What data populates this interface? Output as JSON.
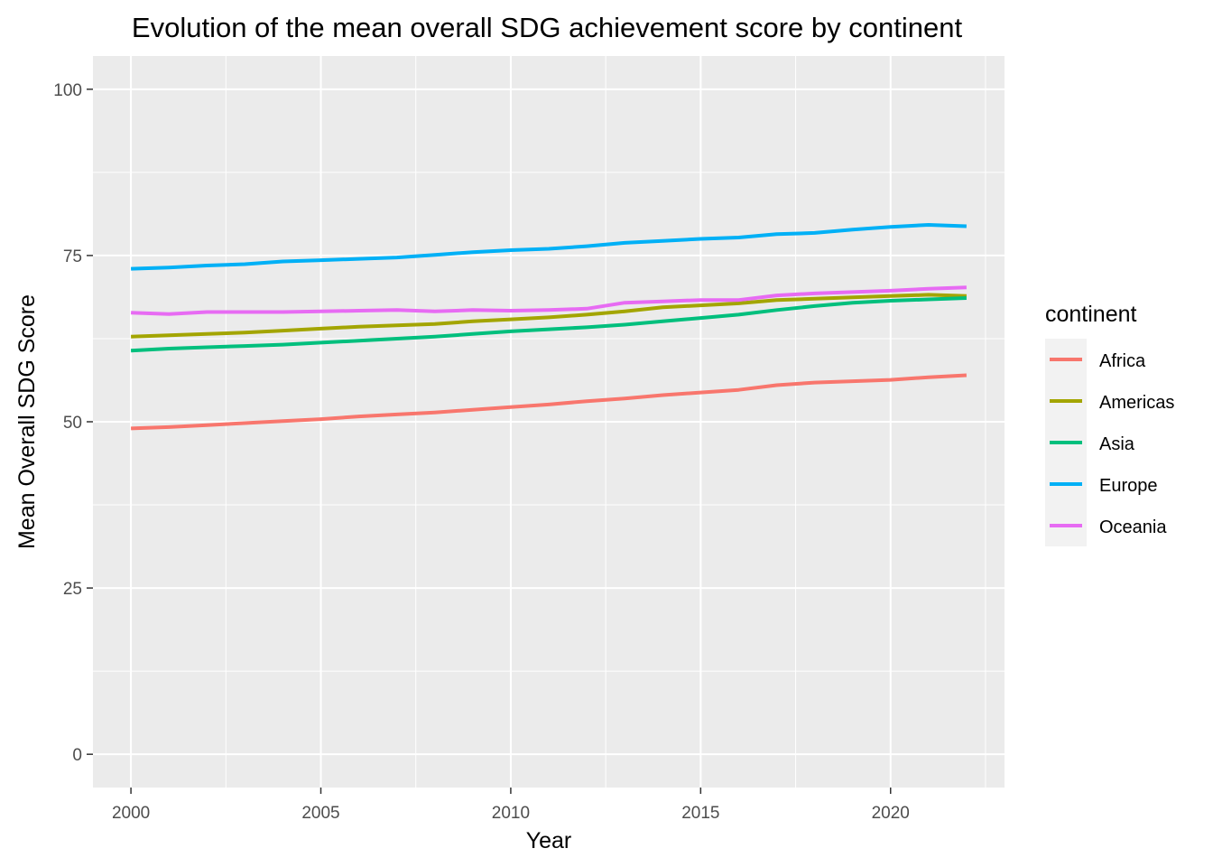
{
  "chart_data": {
    "type": "line",
    "title": "Evolution of the mean overall SDG achievement score by continent",
    "xlabel": "Year",
    "ylabel": "Mean Overall SDG Score",
    "xlim": [
      1999,
      2023
    ],
    "ylim": [
      -5,
      105
    ],
    "x_ticks": [
      2000,
      2005,
      2010,
      2015,
      2020
    ],
    "y_ticks": [
      0,
      25,
      50,
      75,
      100
    ],
    "grid": true,
    "legend_title": "continent",
    "legend_position": "right",
    "x": [
      2000,
      2001,
      2002,
      2003,
      2004,
      2005,
      2006,
      2007,
      2008,
      2009,
      2010,
      2011,
      2012,
      2013,
      2014,
      2015,
      2016,
      2017,
      2018,
      2019,
      2020,
      2021,
      2022
    ],
    "series": [
      {
        "name": "Africa",
        "color": "#F8766D",
        "values": [
          49.0,
          49.2,
          49.5,
          49.8,
          50.1,
          50.4,
          50.8,
          51.1,
          51.4,
          51.8,
          52.2,
          52.6,
          53.1,
          53.5,
          54.0,
          54.4,
          54.8,
          55.5,
          55.9,
          56.1,
          56.3,
          56.7,
          57.0
        ]
      },
      {
        "name": "Americas",
        "color": "#A3A500",
        "values": [
          62.8,
          63.0,
          63.2,
          63.4,
          63.7,
          64.0,
          64.3,
          64.5,
          64.7,
          65.1,
          65.4,
          65.7,
          66.1,
          66.6,
          67.2,
          67.5,
          67.8,
          68.3,
          68.5,
          68.7,
          68.9,
          69.1,
          68.9
        ]
      },
      {
        "name": "Asia",
        "color": "#00BF7D",
        "values": [
          60.7,
          61.0,
          61.2,
          61.4,
          61.6,
          61.9,
          62.2,
          62.5,
          62.8,
          63.2,
          63.6,
          63.9,
          64.2,
          64.6,
          65.1,
          65.6,
          66.1,
          66.8,
          67.4,
          67.9,
          68.2,
          68.4,
          68.6
        ]
      },
      {
        "name": "Europe",
        "color": "#00B0F6",
        "values": [
          73.0,
          73.2,
          73.5,
          73.7,
          74.1,
          74.3,
          74.5,
          74.7,
          75.1,
          75.5,
          75.8,
          76.0,
          76.4,
          76.9,
          77.2,
          77.5,
          77.7,
          78.2,
          78.4,
          78.9,
          79.3,
          79.6,
          79.4
        ]
      },
      {
        "name": "Oceania",
        "color": "#E76BF3",
        "values": [
          66.4,
          66.2,
          66.5,
          66.5,
          66.5,
          66.6,
          66.7,
          66.8,
          66.6,
          66.8,
          66.7,
          66.8,
          67.0,
          67.9,
          68.1,
          68.3,
          68.3,
          69.0,
          69.3,
          69.5,
          69.7,
          70.0,
          70.2
        ]
      }
    ]
  }
}
